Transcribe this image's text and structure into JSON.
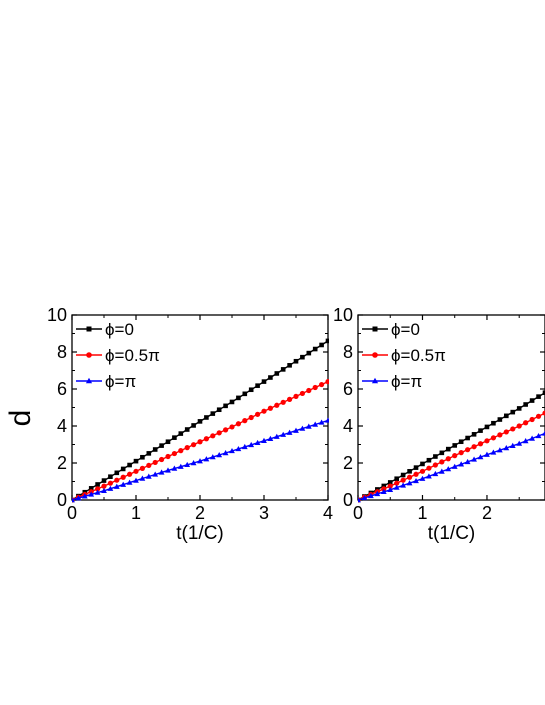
{
  "figure": {
    "ylabel": "d"
  },
  "chart_data": [
    {
      "type": "line",
      "panel": "left",
      "xlabel": "t(1/C)",
      "ylabel": "d",
      "xlim": [
        0,
        4
      ],
      "ylim": [
        0,
        10
      ],
      "xticks": [
        "0",
        "1",
        "2",
        "3",
        "4"
      ],
      "yticks": [
        "0",
        "2",
        "4",
        "6",
        "8",
        "10"
      ],
      "grid": false,
      "legend_position": "top-left",
      "x": [
        0,
        0.5,
        1,
        1.5,
        2,
        2.5,
        3,
        3.5,
        4
      ],
      "series": [
        {
          "name": "ϕ=0",
          "marker": "square",
          "color": "#000000",
          "values": [
            0,
            1.05,
            2.1,
            3.15,
            4.25,
            5.3,
            6.4,
            7.5,
            8.6
          ]
        },
        {
          "name": "ϕ=0.5π",
          "marker": "circle",
          "color": "#ff0000",
          "values": [
            0,
            0.75,
            1.55,
            2.35,
            3.15,
            3.95,
            4.8,
            5.6,
            6.4
          ]
        },
        {
          "name": "ϕ=π",
          "marker": "triangle",
          "color": "#0000ff",
          "values": [
            0,
            0.5,
            1.05,
            1.6,
            2.1,
            2.65,
            3.2,
            3.75,
            4.3
          ]
        }
      ]
    },
    {
      "type": "line",
      "panel": "right",
      "xlabel": "t(1/C)",
      "ylabel": "",
      "xlim": [
        0,
        2.9
      ],
      "ylim": [
        0,
        10
      ],
      "xticks": [
        "0",
        "1",
        "2"
      ],
      "yticks": [
        "0",
        "2",
        "4",
        "6",
        "8",
        "10"
      ],
      "grid": false,
      "legend_position": "top-left",
      "x": [
        0,
        0.5,
        1,
        1.5,
        2,
        2.5,
        2.9
      ],
      "series": [
        {
          "name": "ϕ=0",
          "marker": "square",
          "color": "#000000",
          "values": [
            0,
            0.95,
            1.95,
            2.95,
            3.95,
            4.95,
            5.8
          ]
        },
        {
          "name": "ϕ=0.5π",
          "marker": "circle",
          "color": "#ff0000",
          "values": [
            0,
            0.75,
            1.55,
            2.4,
            3.2,
            4.0,
            4.7
          ]
        },
        {
          "name": "ϕ=π",
          "marker": "triangle",
          "color": "#0000ff",
          "values": [
            0,
            0.55,
            1.15,
            1.8,
            2.45,
            3.05,
            3.6
          ]
        }
      ]
    }
  ]
}
